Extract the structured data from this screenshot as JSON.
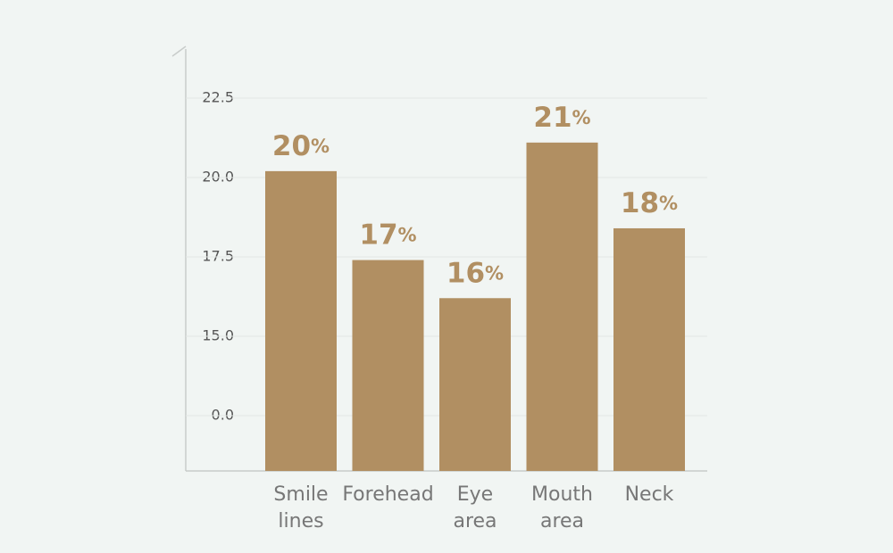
{
  "chart_data": {
    "type": "bar",
    "categories": [
      "Smile lines",
      "Forehead",
      "Eye area",
      "Mouth area",
      "Neck"
    ],
    "values": [
      20.2,
      17.4,
      16.2,
      21.1,
      18.4
    ],
    "value_labels": [
      "20%",
      "17%",
      "16%",
      "21%",
      "18%"
    ],
    "color": "#b18f62",
    "ylim": [
      0,
      24
    ],
    "yticks": [
      {
        "value": 0,
        "label": "0.0"
      },
      {
        "value": 15,
        "label": "15.0"
      },
      {
        "value": 17.5,
        "label": "17.5"
      },
      {
        "value": 20,
        "label": "20.0"
      },
      {
        "value": 22.5,
        "label": "22.5"
      }
    ],
    "grid": true
  }
}
